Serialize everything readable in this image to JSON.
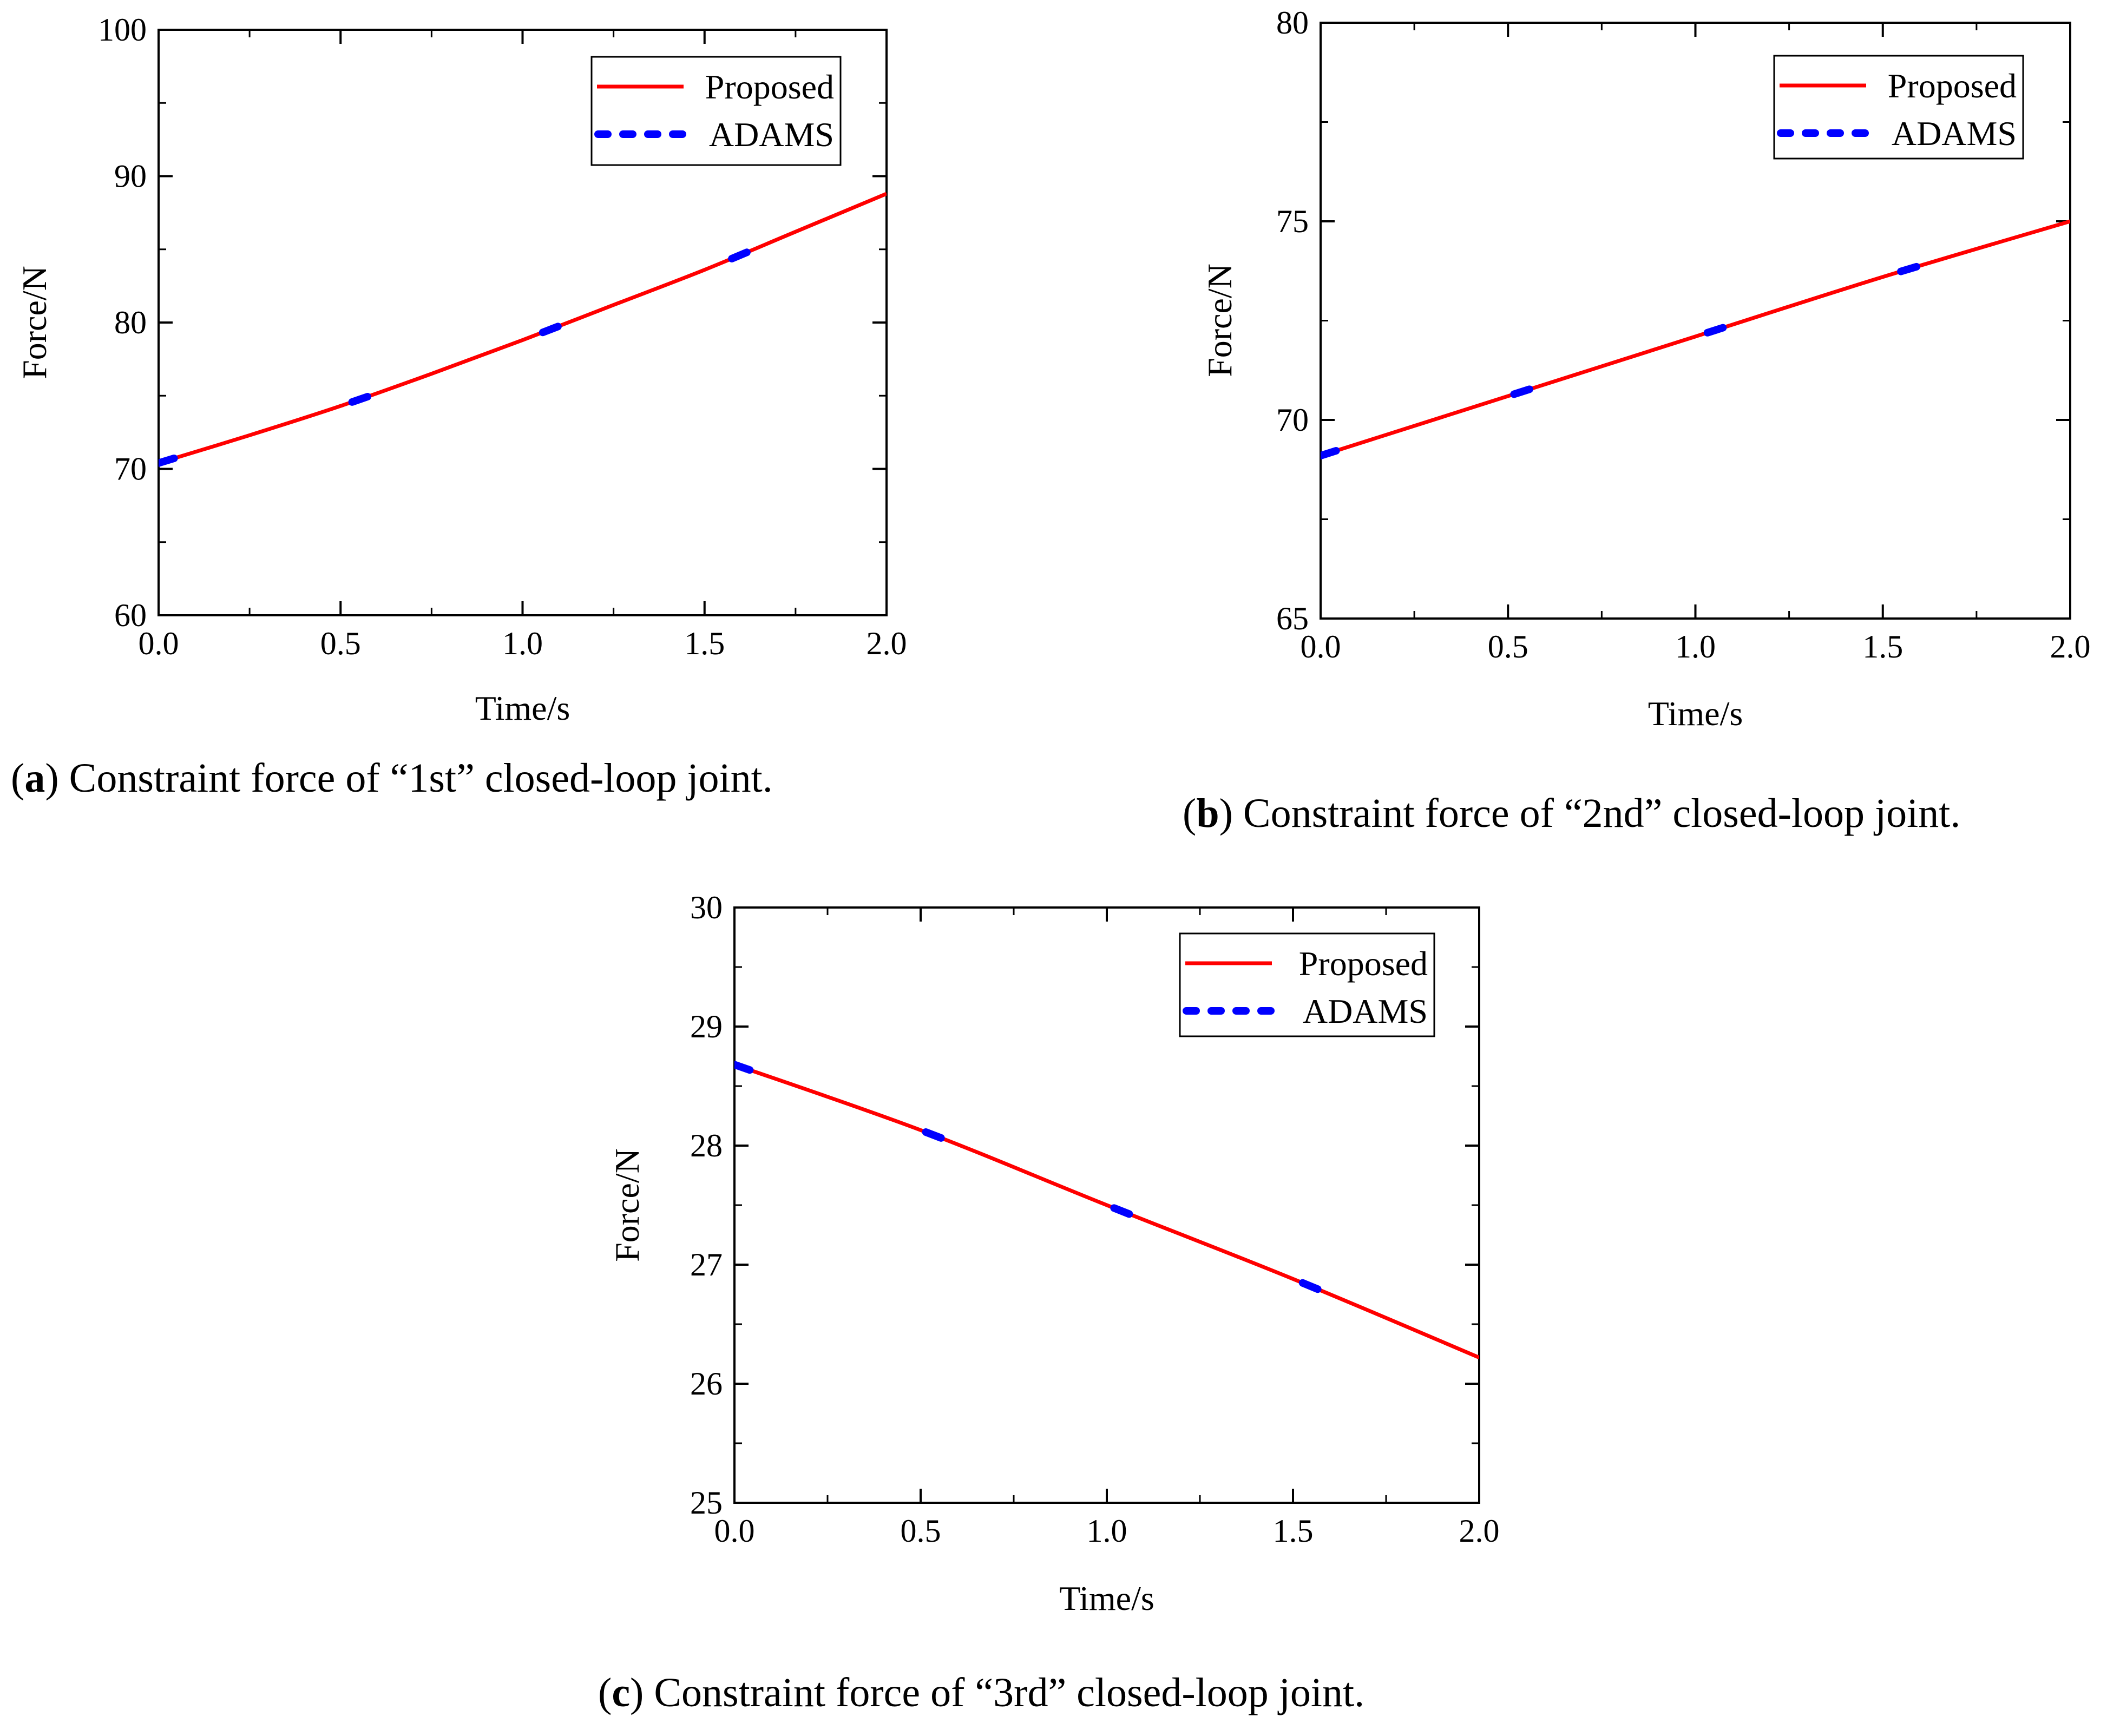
{
  "chart_data": [
    {
      "id": "a",
      "type": "line",
      "caption_letter": "a",
      "caption_text": "Constraint force of “1st” closed-loop joint.",
      "xlabel": "Time/s",
      "ylabel": "Force/N",
      "xlim": [
        0.0,
        2.0
      ],
      "ylim": [
        60,
        100
      ],
      "xticks": [
        "0.0",
        "0.5",
        "1.0",
        "1.5",
        "2.0"
      ],
      "yticks": [
        "60",
        "70",
        "80",
        "90",
        "100"
      ],
      "xtick_values": [
        0.0,
        0.5,
        1.0,
        1.5,
        2.0
      ],
      "ytick_values": [
        60,
        70,
        80,
        90,
        100
      ],
      "legend_position": "top-right",
      "series": [
        {
          "name": "Proposed",
          "style": "solid",
          "color": "#ff0000",
          "x": [
            0.0,
            0.25,
            0.5,
            0.75,
            1.0,
            1.25,
            1.5,
            1.75,
            2.0
          ],
          "y": [
            70.4,
            72.3,
            74.3,
            76.5,
            78.8,
            81.2,
            83.6,
            86.2,
            88.8
          ]
        },
        {
          "name": "ADAMS",
          "style": "dotted",
          "color": "#0000ff",
          "x": [
            0.0,
            0.25,
            0.5,
            0.75,
            1.0,
            1.25,
            1.5,
            1.75,
            2.0
          ],
          "y": [
            70.4,
            72.3,
            74.3,
            76.5,
            78.8,
            81.2,
            83.6,
            86.2,
            88.8
          ]
        }
      ]
    },
    {
      "id": "b",
      "type": "line",
      "caption_letter": "b",
      "caption_text": "Constraint force of “2nd” closed-loop joint.",
      "xlabel": "Time/s",
      "ylabel": "Force/N",
      "xlim": [
        0.0,
        2.0
      ],
      "ylim": [
        65,
        80
      ],
      "xticks": [
        "0.0",
        "0.5",
        "1.0",
        "1.5",
        "2.0"
      ],
      "yticks": [
        "65",
        "70",
        "75",
        "80"
      ],
      "xtick_values": [
        0.0,
        0.5,
        1.0,
        1.5,
        2.0
      ],
      "ytick_values": [
        65,
        70,
        75,
        80
      ],
      "legend_position": "top-right",
      "series": [
        {
          "name": "Proposed",
          "style": "solid",
          "color": "#ff0000",
          "x": [
            0.0,
            0.5,
            1.0,
            1.5,
            2.0
          ],
          "y": [
            69.1,
            70.6,
            72.1,
            73.6,
            75.0
          ]
        },
        {
          "name": "ADAMS",
          "style": "dotted",
          "color": "#0000ff",
          "x": [
            0.0,
            0.5,
            1.0,
            1.5,
            2.0
          ],
          "y": [
            69.1,
            70.6,
            72.1,
            73.6,
            75.0
          ]
        }
      ]
    },
    {
      "id": "c",
      "type": "line",
      "caption_letter": "c",
      "caption_text": "Constraint force of “3rd” closed-loop joint.",
      "xlabel": "Time/s",
      "ylabel": "Force/N",
      "xlim": [
        0.0,
        2.0
      ],
      "ylim": [
        25,
        30
      ],
      "xticks": [
        "0.0",
        "0.5",
        "1.0",
        "1.5",
        "2.0"
      ],
      "yticks": [
        "25",
        "26",
        "27",
        "28",
        "29",
        "30"
      ],
      "xtick_values": [
        0.0,
        0.5,
        1.0,
        1.5,
        2.0
      ],
      "ytick_values": [
        25,
        26,
        27,
        28,
        29,
        30
      ],
      "legend_position": "top-right",
      "series": [
        {
          "name": "Proposed",
          "style": "solid",
          "color": "#ff0000",
          "x": [
            0.0,
            0.5,
            1.0,
            1.5,
            2.0
          ],
          "y": [
            28.68,
            28.13,
            27.5,
            26.88,
            26.22
          ]
        },
        {
          "name": "ADAMS",
          "style": "dotted",
          "color": "#0000ff",
          "x": [
            0.0,
            0.5,
            1.0,
            1.5,
            2.0
          ],
          "y": [
            28.68,
            28.13,
            27.5,
            26.88,
            26.22
          ]
        }
      ]
    }
  ]
}
